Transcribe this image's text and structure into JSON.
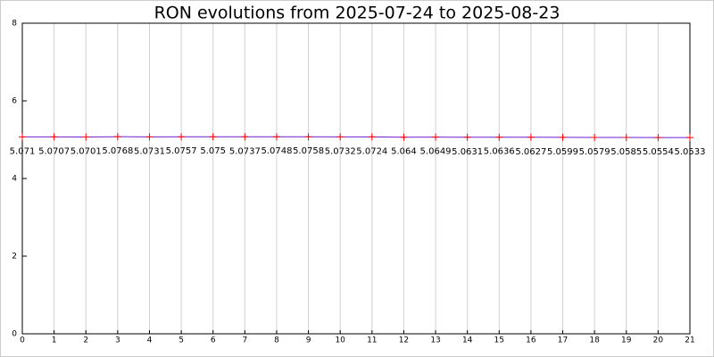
{
  "chart_data": {
    "type": "line",
    "title": "RON evolutions from 2025-07-24 to 2025-08-23",
    "x": [
      0,
      1,
      2,
      3,
      4,
      5,
      6,
      7,
      8,
      9,
      10,
      11,
      12,
      13,
      14,
      15,
      16,
      17,
      18,
      19,
      20,
      21
    ],
    "values": [
      5.071,
      5.0707,
      5.0701,
      5.0768,
      5.0731,
      5.0757,
      5.075,
      5.0737,
      5.0748,
      5.0758,
      5.0732,
      5.0724,
      5.064,
      5.0649,
      5.0631,
      5.0636,
      5.0627,
      5.0599,
      5.0579,
      5.0585,
      5.0554,
      5.0533
    ],
    "color": "#6a1fd0",
    "marker_color": "#ff0000",
    "xlim": [
      0,
      21
    ],
    "xticks": [
      0,
      1,
      2,
      3,
      4,
      5,
      6,
      7,
      8,
      9,
      10,
      11,
      12,
      13,
      14,
      15,
      16,
      17,
      18,
      19,
      20,
      21
    ],
    "ylim": [
      0,
      8
    ],
    "yticks": [
      0,
      2,
      4,
      6,
      8
    ],
    "grid": "x"
  }
}
